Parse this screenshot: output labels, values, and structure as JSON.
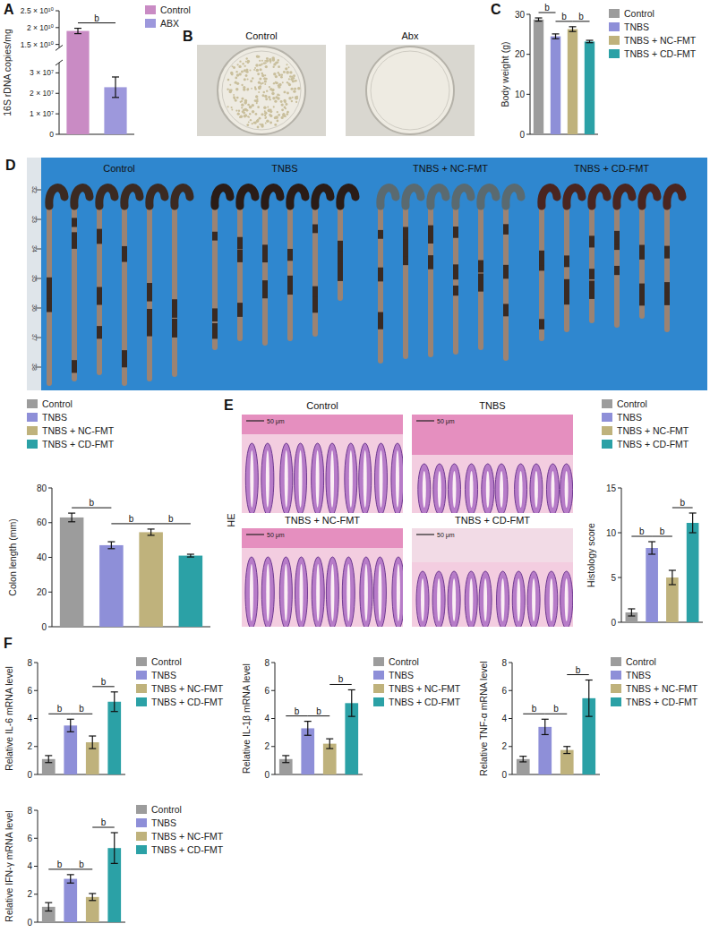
{
  "chart_data": [
    {
      "type": "bar",
      "panel_label": "A",
      "y_label": "16S rDNA copies/mg",
      "categories": [
        "Control",
        "ABX"
      ],
      "colors": [
        "#c98bc4",
        "#9d98dc"
      ],
      "values": [
        19000000000,
        23000000
      ],
      "errors": [
        800000000,
        5000000
      ],
      "ylim": [
        0,
        25000000000
      ],
      "y_break": [
        35000000,
        14000000000
      ],
      "yticks": [
        0,
        {
          "value": 10000000,
          "label": "1 × 10⁷"
        },
        {
          "value": 20000000,
          "label": "2 × 10⁷"
        },
        {
          "value": 30000000,
          "label": "3 × 10⁷"
        },
        {
          "value": 15000000000,
          "label": "1.5 × 10¹⁰"
        },
        {
          "value": 20000000000,
          "label": "2 × 10¹⁰"
        },
        {
          "value": 25000000000,
          "label": "2.5 × 10¹⁰"
        }
      ],
      "legend": "right",
      "tick_labels": "y",
      "significance": [
        {
          "label": "b",
          "between": [
            "Control",
            "ABX"
          ]
        }
      ]
    },
    {
      "type": "image",
      "panel_label": "B",
      "labels": [
        "Control",
        "Abx"
      ]
    },
    {
      "type": "bar",
      "panel_label": "C",
      "y_label": "Body weight (g)",
      "categories": [
        "Control",
        "TNBS",
        "TNBS + NC-FMT",
        "TNBS + CD-FMT"
      ],
      "colors": [
        "#9c9c9c",
        "#8e8fd8",
        "#bfb27c",
        "#2ba1a6"
      ],
      "values": [
        28.7,
        24.5,
        26.3,
        23.2
      ],
      "errors": [
        0.4,
        0.6,
        0.6,
        0.3
      ],
      "ylim": [
        0,
        30
      ],
      "yticks": [
        0,
        10,
        20,
        30
      ],
      "legend": "right",
      "tick_labels": "y",
      "significance": [
        {
          "label": "b",
          "between": [
            "Control",
            "TNBS"
          ]
        },
        {
          "label": "b",
          "between": [
            "TNBS",
            "TNBS + NC-FMT"
          ]
        },
        {
          "label": "b",
          "between": [
            "TNBS + NC-FMT",
            "TNBS + CD-FMT"
          ]
        }
      ]
    },
    {
      "type": "image",
      "panel_label": "D",
      "labels": [
        "Control",
        "TNBS",
        "TNBS + NC-FMT",
        "TNBS + CD-FMT"
      ],
      "ruler_labels": [
        "32",
        "33",
        "34",
        "35",
        "36",
        "37",
        "38"
      ]
    },
    {
      "type": "bar",
      "y_label": "Colon length (mm)",
      "categories": [
        "Control",
        "TNBS",
        "TNBS + NC-FMT",
        "TNBS + CD-FMT"
      ],
      "colors": [
        "#9c9c9c",
        "#8e8fd8",
        "#bfb27c",
        "#2ba1a6"
      ],
      "values": [
        63,
        47,
        54.5,
        41
      ],
      "errors": [
        2.5,
        2,
        1.8,
        0.8
      ],
      "ylim": [
        0,
        80
      ],
      "yticks": [
        0,
        20,
        40,
        60,
        80
      ],
      "legend": "top",
      "tick_labels": "y",
      "significance": [
        {
          "label": "b",
          "between": [
            "Control",
            "TNBS"
          ]
        },
        {
          "label": "b",
          "between": [
            "TNBS",
            "TNBS + NC-FMT"
          ]
        },
        {
          "label": "b",
          "between": [
            "TNBS + NC-FMT",
            "TNBS + CD-FMT"
          ]
        }
      ]
    },
    {
      "type": "image",
      "panel_label": "E",
      "labels": [
        "Control",
        "TNBS",
        "TNBS + NC-FMT",
        "TNBS + CD-FMT"
      ],
      "side_label": "HE",
      "scale_bar": "50 μm"
    },
    {
      "type": "bar",
      "y_label": "Histology score",
      "categories": [
        "Control",
        "TNBS",
        "TNBS + NC-FMT",
        "TNBS + CD-FMT"
      ],
      "colors": [
        "#9c9c9c",
        "#8e8fd8",
        "#bfb27c",
        "#2ba1a6"
      ],
      "values": [
        1.1,
        8.3,
        5.0,
        11.1
      ],
      "errors": [
        0.4,
        0.7,
        0.8,
        1.1
      ],
      "ylim": [
        0,
        15
      ],
      "yticks": [
        0,
        5,
        10,
        15
      ],
      "legend": "top",
      "tick_labels": "y",
      "significance": [
        {
          "label": "b",
          "between": [
            "Control",
            "TNBS"
          ]
        },
        {
          "label": "b",
          "between": [
            "TNBS",
            "TNBS + NC-FMT"
          ]
        },
        {
          "label": "b",
          "between": [
            "TNBS + NC-FMT",
            "TNBS + CD-FMT"
          ]
        }
      ]
    },
    {
      "type": "bar",
      "panel_label": "F",
      "y_label": "Relative IL-6 mRNA level",
      "categories": [
        "Control",
        "TNBS",
        "TNBS + NC-FMT",
        "TNBS + CD-FMT"
      ],
      "colors": [
        "#9c9c9c",
        "#8e8fd8",
        "#bfb27c",
        "#2ba1a6"
      ],
      "values": [
        1.1,
        3.5,
        2.3,
        5.2
      ],
      "errors": [
        0.25,
        0.45,
        0.45,
        0.7
      ],
      "ylim": [
        0,
        8
      ],
      "yticks": [
        0,
        2,
        4,
        6,
        8
      ],
      "legend": "right",
      "tick_labels": "y",
      "significance": [
        {
          "label": "b",
          "between": [
            "Control",
            "TNBS"
          ]
        },
        {
          "label": "b",
          "between": [
            "TNBS",
            "TNBS + NC-FMT"
          ]
        },
        {
          "label": "b",
          "between": [
            "TNBS + NC-FMT",
            "TNBS + CD-FMT"
          ]
        }
      ]
    },
    {
      "type": "bar",
      "y_label": "Relative IL-1β mRNA level",
      "categories": [
        "Control",
        "TNBS",
        "TNBS + NC-FMT",
        "TNBS + CD-FMT"
      ],
      "colors": [
        "#9c9c9c",
        "#8e8fd8",
        "#bfb27c",
        "#2ba1a6"
      ],
      "values": [
        1.1,
        3.3,
        2.2,
        5.1
      ],
      "errors": [
        0.25,
        0.5,
        0.35,
        0.95
      ],
      "ylim": [
        0,
        8
      ],
      "yticks": [
        0,
        2,
        4,
        6,
        8
      ],
      "legend": "right",
      "tick_labels": "y",
      "significance": [
        {
          "label": "b",
          "between": [
            "Control",
            "TNBS"
          ]
        },
        {
          "label": "b",
          "between": [
            "TNBS",
            "TNBS + NC-FMT"
          ]
        },
        {
          "label": "b",
          "between": [
            "TNBS + NC-FMT",
            "TNBS + CD-FMT"
          ]
        }
      ]
    },
    {
      "type": "bar",
      "y_label": "Relative TNF-α mRNA level",
      "categories": [
        "Control",
        "TNBS",
        "TNBS + NC-FMT",
        "TNBS + CD-FMT"
      ],
      "colors": [
        "#9c9c9c",
        "#8e8fd8",
        "#bfb27c",
        "#2ba1a6"
      ],
      "values": [
        1.1,
        3.4,
        1.75,
        5.45
      ],
      "errors": [
        0.2,
        0.55,
        0.25,
        1.3
      ],
      "ylim": [
        0,
        8
      ],
      "yticks": [
        0,
        2,
        4,
        6,
        8
      ],
      "legend": "right",
      "tick_labels": "y",
      "significance": [
        {
          "label": "b",
          "between": [
            "Control",
            "TNBS"
          ]
        },
        {
          "label": "b",
          "between": [
            "TNBS",
            "TNBS + NC-FMT"
          ]
        },
        {
          "label": "b",
          "between": [
            "TNBS + NC-FMT",
            "TNBS + CD-FMT"
          ]
        }
      ]
    },
    {
      "type": "bar",
      "y_label": "Relative IFN-γ mRNA level",
      "categories": [
        "Control",
        "TNBS",
        "TNBS + NC-FMT",
        "TNBS + CD-FMT"
      ],
      "colors": [
        "#9c9c9c",
        "#8e8fd8",
        "#bfb27c",
        "#2ba1a6"
      ],
      "values": [
        1.1,
        3.1,
        1.8,
        5.3
      ],
      "errors": [
        0.3,
        0.3,
        0.25,
        1.1
      ],
      "ylim": [
        0,
        8
      ],
      "yticks": [
        0,
        2,
        4,
        6,
        8
      ],
      "legend": "right",
      "tick_labels": "y",
      "significance": [
        {
          "label": "b",
          "between": [
            "Control",
            "TNBS"
          ]
        },
        {
          "label": "b",
          "between": [
            "TNBS",
            "TNBS + NC-FMT"
          ]
        },
        {
          "label": "b",
          "between": [
            "TNBS + NC-FMT",
            "TNBS + CD-FMT"
          ]
        }
      ]
    }
  ]
}
